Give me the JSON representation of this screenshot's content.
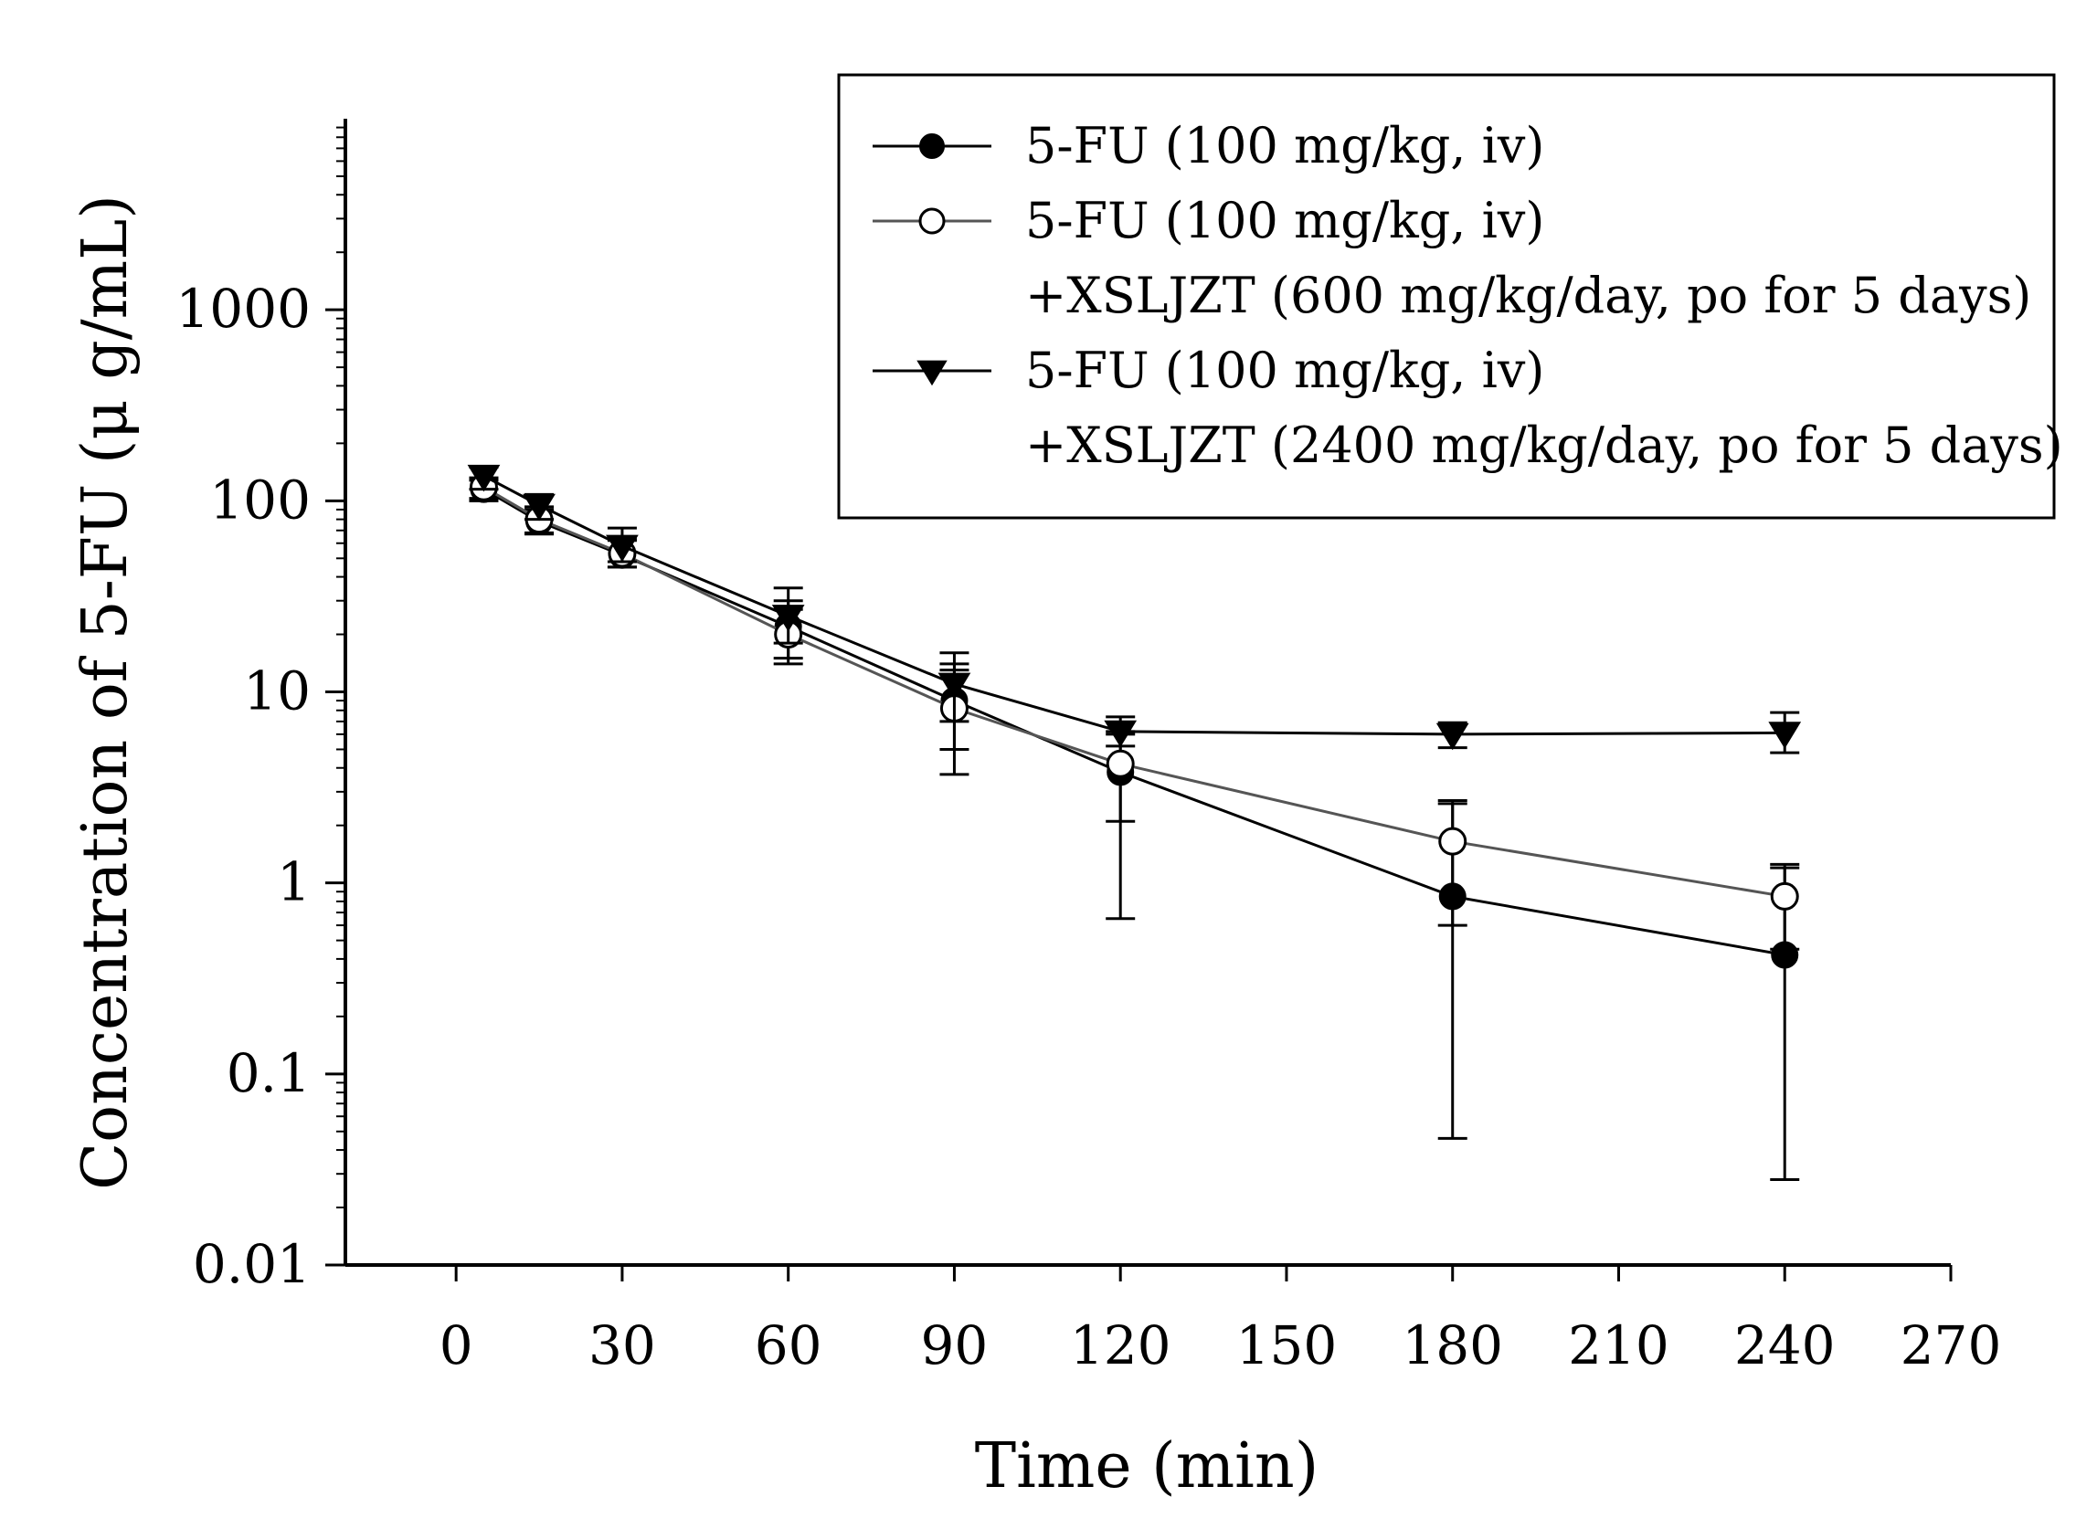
{
  "chart_data": {
    "type": "line",
    "xlabel": "Time (min)",
    "ylabel": "Concentration of 5-FU (μ g/mL)",
    "xscale": "linear",
    "yscale": "log",
    "xlim": [
      -20,
      270
    ],
    "ylim": [
      0.01,
      10000
    ],
    "xticks": [
      0,
      30,
      60,
      90,
      120,
      150,
      180,
      210,
      240,
      270
    ],
    "xtick_labels": [
      "0",
      "30",
      "60",
      "90",
      "120",
      "150",
      "180",
      "210",
      "240",
      "270"
    ],
    "yticks": [
      0.01,
      0.1,
      1,
      10,
      100,
      1000
    ],
    "ytick_labels": [
      "0.01",
      "0.1",
      "1",
      "10",
      "100",
      "1000"
    ],
    "grid": false,
    "legend_position": "top-right",
    "series": [
      {
        "name": "5-FU (100 mg/kg, iv)",
        "legend_lines": [
          "5-FU (100 mg/kg, iv)"
        ],
        "marker": "circle-filled",
        "x": [
          5,
          15,
          30,
          60,
          90,
          120,
          180,
          240
        ],
        "y": [
          115,
          78,
          52,
          22,
          9,
          3.8,
          0.85,
          0.42
        ],
        "err_low": [
          100,
          67,
          45,
          15,
          3.7,
          0.65,
          0.046,
          0.028
        ],
        "err_high": [
          128,
          90,
          62,
          30,
          14,
          6.2,
          2.6,
          1.2
        ]
      },
      {
        "name": "5-FU (100 mg/kg, iv) +XSLJZT (600 mg/kg/day, po for 5 days)",
        "legend_lines": [
          "5-FU (100 mg/kg, iv)",
          "+XSLJZT (600 mg/kg/day, po for 5 days)"
        ],
        "marker": "circle-open",
        "x": [
          5,
          15,
          30,
          60,
          90,
          120,
          180,
          240
        ],
        "y": [
          118,
          80,
          53,
          20,
          8.2,
          4.2,
          1.65,
          0.85
        ],
        "err_low": [
          103,
          68,
          45,
          14,
          5,
          2.1,
          0.6,
          0.45
        ],
        "err_high": [
          132,
          93,
          63,
          27,
          13,
          6,
          2.7,
          1.25
        ]
      },
      {
        "name": "5-FU (100 mg/kg, iv) +XSLJZT (2400 mg/kg/day, po for 5 days)",
        "legend_lines": [
          "5-FU (100 mg/kg, iv)",
          "+XSLJZT (2400 mg/kg/day, po for 5 days)"
        ],
        "marker": "triangle-down-filled",
        "x": [
          5,
          15,
          30,
          60,
          90,
          120,
          180,
          240
        ],
        "y": [
          135,
          95,
          58,
          25,
          11,
          6.2,
          6.0,
          6.1
        ],
        "err_low": [
          115,
          80,
          48,
          18,
          7,
          5.2,
          5.1,
          4.8
        ],
        "err_high": [
          150,
          108,
          72,
          35,
          16,
          7.4,
          6.9,
          7.8
        ]
      }
    ]
  }
}
